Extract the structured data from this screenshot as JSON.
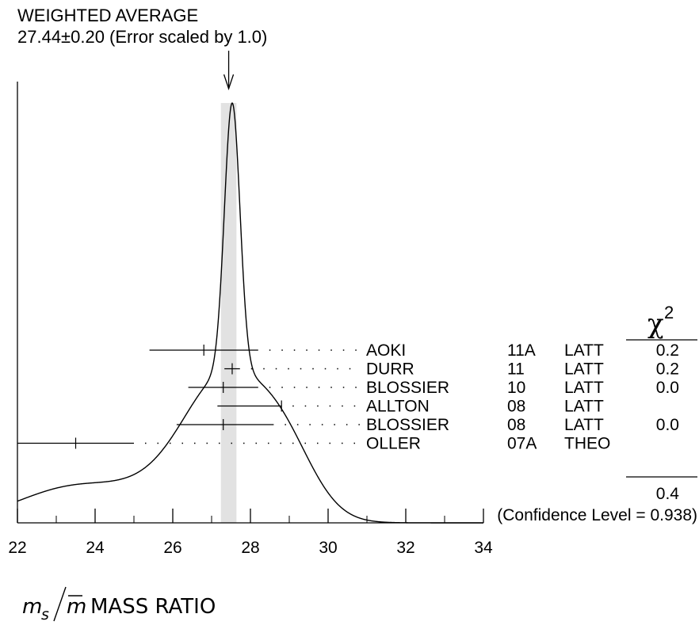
{
  "chart_data": {
    "type": "ideogram",
    "title": "WEIGHTED AVERAGE",
    "subtitle": "27.44±0.20 (Error scaled by 1.0)",
    "weighted_average": {
      "value": 27.44,
      "error": 0.2
    },
    "xlim": [
      22,
      34
    ],
    "xticks": [
      "22",
      "24",
      "26",
      "28",
      "30",
      "32",
      "34"
    ],
    "xlabel_symbol_num": "m",
    "xlabel_symbol_sub": "s",
    "xlabel_symbol_den": "m",
    "xlabel": "MASS RATIO",
    "chi2_header": "χ",
    "chi2_header_sup": "2",
    "measurements": [
      {
        "author": "AOKI",
        "year": "11A",
        "tech": "LATT",
        "value": 26.8,
        "err_low": 1.4,
        "err_high": 1.4,
        "chi2": "0.2"
      },
      {
        "author": "DURR",
        "year": "11",
        "tech": "LATT",
        "value": 27.53,
        "err_low": 0.2,
        "err_high": 0.2,
        "chi2": "0.2"
      },
      {
        "author": "BLOSSIER",
        "year": "10",
        "tech": "LATT",
        "value": 27.3,
        "err_low": 0.9,
        "err_high": 0.9,
        "chi2": "0.0"
      },
      {
        "author": "ALLTON",
        "year": "08",
        "tech": "LATT",
        "value": 28.8,
        "err_low": 1.65,
        "err_high": 0.0,
        "chi2": ""
      },
      {
        "author": "BLOSSIER",
        "year": "08",
        "tech": "LATT",
        "value": 27.3,
        "err_low": 1.2,
        "err_high": 1.3,
        "chi2": "0.0"
      },
      {
        "author": "OLLER",
        "year": "07A",
        "tech": "THEO",
        "value": 23.5,
        "err_low": 1.5,
        "err_high": 1.5,
        "chi2": ""
      }
    ],
    "chi2_total": "0.4",
    "confidence_level": "(Confidence Level = 0.938)"
  }
}
